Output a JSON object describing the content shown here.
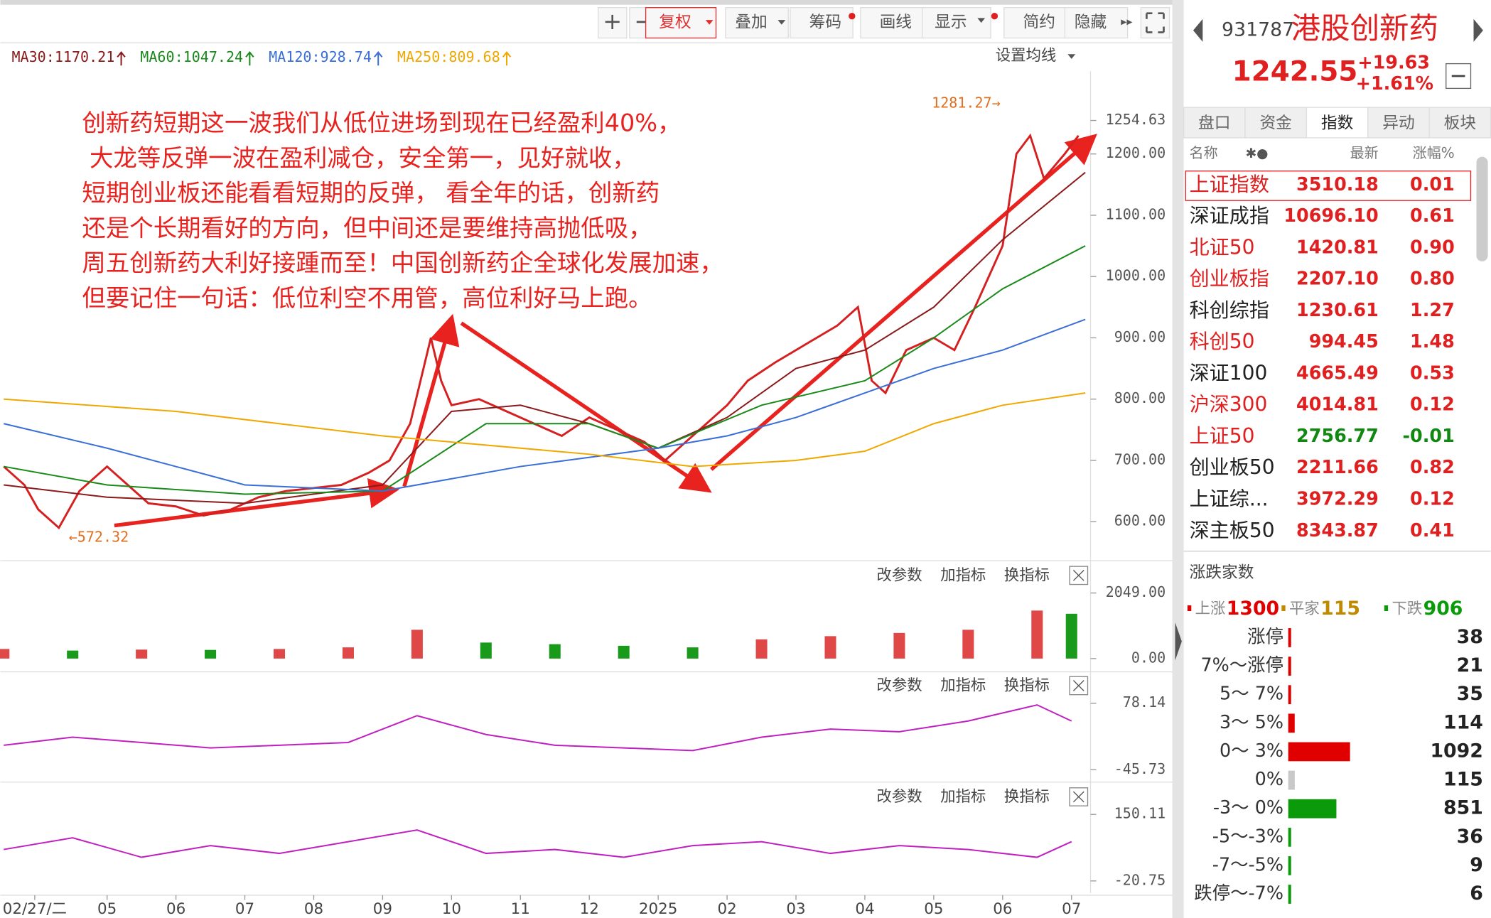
{
  "toolbar": {
    "buttons": [
      "+",
      "−",
      "复权",
      "叠加",
      "筹码",
      "画线",
      "显示",
      "简约",
      "隐藏"
    ]
  },
  "ma_settings": "设置均线",
  "panel_tools": [
    "改参数",
    "加指标",
    "换指标"
  ],
  "annotation": {
    "lines": [
      "创新药短期这一波我们从低位进场到现在已经盈利40%，",
      " 大龙等反弹一波在盈利减仓，安全第一，见好就收，",
      "短期创业板还能看看短期的反弹， 看全年的话，创新药",
      "还是个长期看好的方向，但中间还是要维持高抛低吸，",
      "周五创新药大利好接踵而至！中国创新药企全球化发展加速，",
      "但要记住一句话：低位利空不用管，高位利好马上跑。"
    ],
    "high_label": "1281.27→",
    "low_label": "←572.32",
    "color": "#e8231f"
  },
  "chart_data": [
    {
      "type": "line",
      "xlim": [
        -0.55,
        15.2
      ],
      "xticks": [
        {
          "value": -0.05,
          "label": "02/27/二"
        },
        {
          "value": 1,
          "label": "05"
        },
        {
          "value": 2,
          "label": "06"
        },
        {
          "value": 3,
          "label": "07"
        },
        {
          "value": 4,
          "label": "08"
        },
        {
          "value": 5,
          "label": "09"
        },
        {
          "value": 6,
          "label": "10"
        },
        {
          "value": 7,
          "label": "11"
        },
        {
          "value": 8,
          "label": "12"
        },
        {
          "value": 9,
          "label": "2025"
        },
        {
          "value": 10,
          "label": "02"
        },
        {
          "value": 11,
          "label": "03"
        },
        {
          "value": 12,
          "label": "04"
        },
        {
          "value": 13,
          "label": "05"
        },
        {
          "value": 14,
          "label": "06"
        },
        {
          "value": 15,
          "label": "07"
        }
      ],
      "ylim": [
        536.4,
        1334.9
      ],
      "yticks": [
        {
          "value": 1254.63,
          "label": "1254.63"
        },
        {
          "value": 1200,
          "label": "1200.00"
        },
        {
          "value": 1100,
          "label": "1100.00"
        },
        {
          "value": 1000,
          "label": "1000.00"
        },
        {
          "value": 900,
          "label": "900.00"
        },
        {
          "value": 800,
          "label": "800.00"
        },
        {
          "value": 700,
          "label": "700.00"
        },
        {
          "value": 600,
          "label": "600.00"
        }
      ],
      "series": [
        {
          "color": "#d42020",
          "x": [
            -0.5,
            -0.2,
            0,
            0.3,
            0.6,
            1,
            1.3,
            1.6,
            2,
            2.4,
            2.8,
            3.2,
            3.6,
            4,
            4.4,
            4.8,
            5.1,
            5.4,
            5.7,
            5.85,
            6,
            6.4,
            6.8,
            7.2,
            7.6,
            8,
            8.4,
            8.8,
            9.1,
            9.4,
            9.7,
            10,
            10.3,
            10.7,
            11,
            11.3,
            11.6,
            11.9,
            12.1,
            12.3,
            12.6,
            13,
            13.3,
            13.6,
            14,
            14.2,
            14.4,
            14.6,
            14.9,
            15.1
          ],
          "values": [
            690,
            660,
            620,
            590,
            650,
            690,
            660,
            630,
            625,
            610,
            620,
            640,
            650,
            655,
            660,
            680,
            700,
            760,
            900,
            830,
            790,
            800,
            780,
            760,
            740,
            770,
            750,
            730,
            700,
            730,
            760,
            790,
            830,
            860,
            880,
            900,
            920,
            950,
            830,
            810,
            880,
            900,
            880,
            950,
            1050,
            1200,
            1230,
            1160,
            1200,
            1230
          ]
        },
        {
          "name": "MA30:1170.21",
          "color": "#8b1a1a",
          "x": [
            -0.5,
            1,
            3,
            5,
            6,
            7,
            8,
            9,
            10,
            11,
            12,
            13,
            14,
            15.2
          ],
          "values": [
            660,
            640,
            630,
            660,
            780,
            790,
            760,
            720,
            770,
            850,
            880,
            950,
            1060,
            1170
          ]
        },
        {
          "name": "MA60:1047.24",
          "color": "#1a8a1a",
          "x": [
            -0.5,
            1,
            3,
            5,
            6.5,
            8,
            9,
            10.5,
            12,
            13,
            14,
            15.2
          ],
          "values": [
            690,
            660,
            645,
            650,
            760,
            760,
            720,
            790,
            830,
            900,
            980,
            1050
          ]
        },
        {
          "name": "MA120:928.74",
          "color": "#3a6fd8",
          "x": [
            -0.5,
            1,
            3,
            5,
            7,
            9,
            10,
            11,
            12,
            13,
            14,
            15.2
          ],
          "values": [
            760,
            720,
            660,
            650,
            690,
            720,
            740,
            770,
            810,
            850,
            880,
            930
          ]
        },
        {
          "name": "MA250:809.68",
          "color": "#f0a800",
          "x": [
            -0.5,
            2,
            5,
            8,
            9.5,
            11,
            12,
            13,
            14,
            15.2
          ],
          "values": [
            800,
            780,
            740,
            710,
            690,
            700,
            715,
            760,
            790,
            810
          ]
        }
      ]
    },
    {
      "type": "bar",
      "up_color": "#e04848",
      "down_color": "#1a9a1a",
      "xlim": [
        -0.55,
        15.2
      ],
      "ylim": [
        0,
        2049
      ],
      "yticks": [
        {
          "value": 2049,
          "label": "2049.00"
        },
        {
          "value": 0,
          "label": "0.00"
        }
      ],
      "x": [
        -0.5,
        0.5,
        1.5,
        2.5,
        3.5,
        4.5,
        5.5,
        6.5,
        7.5,
        8.5,
        9.5,
        10.5,
        11.5,
        12.5,
        13.5,
        14.5,
        15
      ],
      "values": [
        300,
        250,
        280,
        270,
        300,
        350,
        900,
        500,
        450,
        400,
        350,
        600,
        700,
        800,
        900,
        1500,
        1400
      ]
    },
    {
      "type": "line",
      "color": "#c020c0",
      "xlim": [
        -0.55,
        15.2
      ],
      "ylim": [
        -45.73,
        78.14
      ],
      "yticks": [
        78.14,
        -45.73
      ],
      "x": [
        -0.5,
        0.5,
        1.5,
        2.5,
        3.5,
        4.5,
        5.5,
        6.5,
        7.5,
        8.5,
        9.5,
        10.5,
        11.5,
        12.5,
        13.5,
        14.5,
        15
      ],
      "values": [
        0,
        15,
        5,
        -5,
        0,
        5,
        55,
        20,
        0,
        -5,
        -10,
        15,
        30,
        25,
        45,
        75,
        45
      ]
    },
    {
      "type": "line",
      "color": "#c020c0",
      "xlim": [
        -0.55,
        15.2
      ],
      "ylim": [
        -20.75,
        150.11
      ],
      "yticks": [
        150.11,
        -20.75
      ],
      "x": [
        -0.5,
        0.5,
        1.5,
        2.5,
        3.5,
        4.5,
        5.5,
        6.5,
        7.5,
        8.5,
        9.5,
        10.5,
        11.5,
        12.5,
        13.5,
        14.5,
        15
      ],
      "values": [
        60,
        90,
        40,
        70,
        50,
        80,
        110,
        50,
        60,
        40,
        70,
        80,
        50,
        70,
        60,
        40,
        80
      ]
    }
  ],
  "quote": {
    "code": "931787",
    "name": "港股创新药",
    "price": "1242.55",
    "change": "+19.63",
    "change_pct": "+1.61%"
  },
  "tabs": [
    "盘口",
    "资金",
    "指数",
    "异动",
    "板块"
  ],
  "index_table": {
    "header": [
      "名称",
      "最新",
      "涨幅%"
    ],
    "rows": [
      {
        "name": "上证指数",
        "name_color": "#e02020",
        "last": "3510.18",
        "change": "0.01",
        "value_color": "#e02020"
      },
      {
        "name": "深证成指",
        "name_color": "#222222",
        "last": "10696.10",
        "change": "0.61",
        "value_color": "#e02020"
      },
      {
        "name": "北证50",
        "name_color": "#e02020",
        "last": "1420.81",
        "change": "0.90",
        "value_color": "#e02020"
      },
      {
        "name": "创业板指",
        "name_color": "#e02020",
        "last": "2207.10",
        "change": "0.80",
        "value_color": "#e02020"
      },
      {
        "name": "科创综指",
        "name_color": "#222222",
        "last": "1230.61",
        "change": "1.27",
        "value_color": "#e02020"
      },
      {
        "name": "科创50",
        "name_color": "#e02020",
        "last": "994.45",
        "change": "1.48",
        "value_color": "#e02020"
      },
      {
        "name": "深证100",
        "name_color": "#222222",
        "last": "4665.49",
        "change": "0.53",
        "value_color": "#e02020"
      },
      {
        "name": "沪深300",
        "name_color": "#e02020",
        "last": "4014.81",
        "change": "0.12",
        "value_color": "#e02020"
      },
      {
        "name": "上证50",
        "name_color": "#e02020",
        "last": "2756.77",
        "change": "-0.01",
        "value_color": "#118811"
      },
      {
        "name": "创业板50",
        "name_color": "#222222",
        "last": "2211.66",
        "change": "0.82",
        "value_color": "#e02020"
      },
      {
        "name": "上证综...",
        "name_color": "#222222",
        "last": "3972.29",
        "change": "0.12",
        "value_color": "#e02020"
      },
      {
        "name": "深主板50",
        "name_color": "#222222",
        "last": "8343.87",
        "change": "0.41",
        "value_color": "#e02020"
      }
    ]
  },
  "breadth": {
    "title": "涨跌家数",
    "up_label": "上涨",
    "up": 1300,
    "flat_label": "平家",
    "flat": 115,
    "down_label": "下跌",
    "down": 906,
    "buckets": [
      {
        "label": "涨停",
        "count": 38,
        "color": "#e00000"
      },
      {
        "label": "7%～涨停",
        "count": 21,
        "color": "#e00000"
      },
      {
        "label": "5～ 7%",
        "count": 35,
        "color": "#e00000"
      },
      {
        "label": "3～ 5%",
        "count": 114,
        "color": "#e00000"
      },
      {
        "label": "0～ 3%",
        "count": 1092,
        "color": "#e00000"
      },
      {
        "label": "0%",
        "count": 115,
        "color": "#c8c8c8"
      },
      {
        "label": "-3～ 0%",
        "count": 851,
        "color": "#0a9a0a"
      },
      {
        "label": "-5～-3%",
        "count": 36,
        "color": "#0a9a0a"
      },
      {
        "label": "-7～-5%",
        "count": 9,
        "color": "#0a9a0a"
      },
      {
        "label": "跌停～-7%",
        "count": 6,
        "color": "#0a9a0a"
      }
    ]
  }
}
